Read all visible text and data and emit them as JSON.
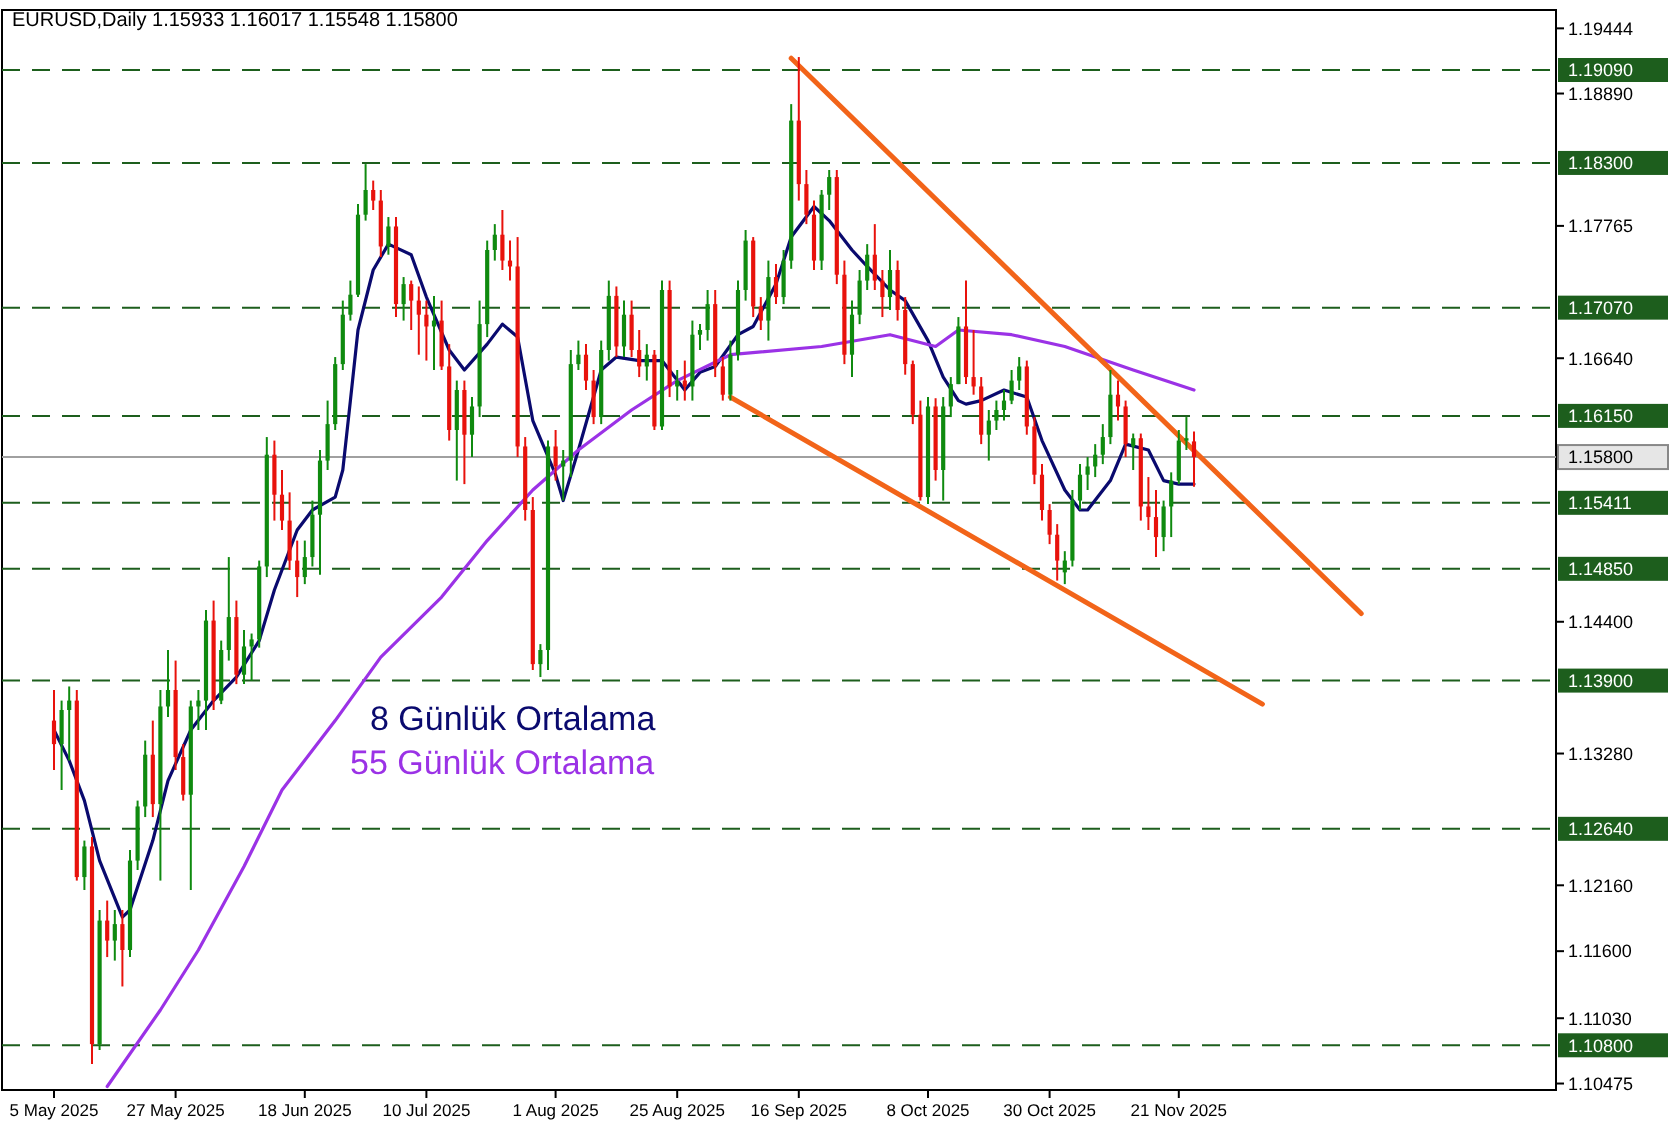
{
  "chart_data": {
    "type": "candlestick",
    "title": "EURUSD,Daily  1.15933 1.16017 1.15548 1.15800",
    "grid": false,
    "marker": "none",
    "line_style": "solid",
    "categories": [
      "5 May 2025",
      null,
      null,
      null,
      null,
      null,
      null,
      null,
      null,
      null,
      null,
      null,
      null,
      null,
      null,
      null,
      "27 May 2025",
      null,
      null,
      null,
      null,
      null,
      null,
      null,
      null,
      null,
      null,
      null,
      null,
      null,
      null,
      null,
      null,
      "18 Jun 2025",
      null,
      null,
      null,
      null,
      null,
      null,
      null,
      null,
      null,
      null,
      null,
      null,
      null,
      null,
      null,
      "10 Jul 2025",
      null,
      null,
      null,
      null,
      null,
      null,
      null,
      null,
      null,
      null,
      null,
      null,
      null,
      null,
      null,
      null,
      "1 Aug 2025",
      null,
      null,
      null,
      null,
      null,
      null,
      null,
      null,
      null,
      null,
      null,
      null,
      null,
      null,
      null,
      "25 Aug 2025",
      null,
      null,
      null,
      null,
      null,
      null,
      null,
      null,
      null,
      null,
      null,
      null,
      null,
      null,
      null,
      "16 Sep 2025",
      null,
      null,
      null,
      null,
      null,
      null,
      null,
      null,
      null,
      null,
      null,
      null,
      null,
      null,
      null,
      null,
      "8 Oct 2025",
      null,
      null,
      null,
      null,
      null,
      null,
      null,
      null,
      null,
      null,
      null,
      null,
      null,
      null,
      null,
      "30 Oct 2025",
      null,
      null,
      null,
      null,
      null,
      null,
      null,
      null,
      null,
      null,
      null,
      null,
      null,
      null,
      null,
      null,
      "21 Nov 2025",
      null,
      null,
      null,
      null,
      null,
      null,
      null,
      null,
      null,
      null,
      null,
      null,
      null,
      null,
      null,
      null,
      null,
      null,
      null,
      null,
      null,
      null,
      null,
      null,
      null,
      null,
      null,
      null,
      null,
      null,
      null,
      null,
      null,
      null,
      null,
      null,
      null,
      null,
      null,
      null,
      null,
      null,
      null,
      null,
      null,
      null,
      null
    ],
    "ohlc": [
      [
        1.1356,
        1.1382,
        1.1314,
        1.1336
      ],
      [
        1.1336,
        1.1373,
        1.1297,
        1.1365
      ],
      [
        1.1365,
        1.1385,
        1.1322,
        1.1373
      ],
      [
        1.1373,
        1.1382,
        1.122,
        1.1223
      ],
      [
        1.1223,
        1.1254,
        1.1212,
        1.1249
      ],
      [
        1.1249,
        1.1257,
        1.1064,
        1.1081
      ],
      [
        1.1081,
        1.1195,
        1.1076,
        1.1186
      ],
      [
        1.1186,
        1.1203,
        1.1155,
        1.1169
      ],
      [
        1.1169,
        1.1195,
        1.1152,
        1.1183
      ],
      [
        1.1183,
        1.1195,
        1.113,
        1.1161
      ],
      [
        1.1161,
        1.1246,
        1.1155,
        1.1237
      ],
      [
        1.1237,
        1.1288,
        1.1229,
        1.1283
      ],
      [
        1.1283,
        1.1339,
        1.1274,
        1.1327
      ],
      [
        1.1327,
        1.1356,
        1.1274,
        1.1285
      ],
      [
        1.1285,
        1.1382,
        1.122,
        1.1368
      ],
      [
        1.1368,
        1.1416,
        1.1359,
        1.1382
      ],
      [
        1.1382,
        1.1407,
        1.1314,
        1.1325
      ],
      [
        1.1325,
        1.1336,
        1.1288,
        1.1293
      ],
      [
        1.1293,
        1.1373,
        1.1212,
        1.1368
      ],
      [
        1.1368,
        1.1382,
        1.1348,
        1.1373
      ],
      [
        1.1373,
        1.145,
        1.1348,
        1.1441
      ],
      [
        1.1441,
        1.1458,
        1.1365,
        1.1373
      ],
      [
        1.1373,
        1.1424,
        1.137,
        1.1416
      ],
      [
        1.1416,
        1.1495,
        1.1407,
        1.1444
      ],
      [
        1.1444,
        1.1458,
        1.1387,
        1.1395
      ],
      [
        1.1395,
        1.1433,
        1.1387,
        1.1419
      ],
      [
        1.1419,
        1.143,
        1.139,
        1.1425
      ],
      [
        1.1425,
        1.1492,
        1.1418,
        1.1487
      ],
      [
        1.1487,
        1.1597,
        1.1478,
        1.1582
      ],
      [
        1.1582,
        1.1594,
        1.1526,
        1.1548
      ],
      [
        1.1548,
        1.1569,
        1.1518,
        1.1526
      ],
      [
        1.1526,
        1.155,
        1.1484,
        1.1492
      ],
      [
        1.1492,
        1.1509,
        1.1461,
        1.1478
      ],
      [
        1.1478,
        1.1509,
        1.1472,
        1.1495
      ],
      [
        1.1495,
        1.1543,
        1.1487,
        1.1531
      ],
      [
        1.1531,
        1.1586,
        1.148,
        1.1577
      ],
      [
        1.1577,
        1.1628,
        1.1569,
        1.1608
      ],
      [
        1.1608,
        1.1665,
        1.1603,
        1.1659
      ],
      [
        1.1659,
        1.1713,
        1.1654,
        1.1701
      ],
      [
        1.1701,
        1.173,
        1.1696,
        1.1718
      ],
      [
        1.1718,
        1.1795,
        1.1716,
        1.1786
      ],
      [
        1.1786,
        1.1829,
        1.1781,
        1.1807
      ],
      [
        1.1807,
        1.1815,
        1.179,
        1.1798
      ],
      [
        1.1798,
        1.1807,
        1.175,
        1.1759
      ],
      [
        1.1759,
        1.1784,
        1.1752,
        1.1776
      ],
      [
        1.1776,
        1.1784,
        1.1699,
        1.171
      ],
      [
        1.171,
        1.1733,
        1.1696,
        1.1727
      ],
      [
        1.1727,
        1.173,
        1.1688,
        1.1713
      ],
      [
        1.1713,
        1.1725,
        1.1667,
        1.1701
      ],
      [
        1.1701,
        1.1713,
        1.1662,
        1.1691
      ],
      [
        1.1691,
        1.1717,
        1.1654,
        1.1696
      ],
      [
        1.1696,
        1.1713,
        1.1654,
        1.1657
      ],
      [
        1.1657,
        1.1676,
        1.1594,
        1.1603
      ],
      [
        1.1603,
        1.1645,
        1.156,
        1.1637
      ],
      [
        1.1637,
        1.1645,
        1.1557,
        1.1599
      ],
      [
        1.1599,
        1.1631,
        1.158,
        1.1623
      ],
      [
        1.1623,
        1.1713,
        1.1614,
        1.1693
      ],
      [
        1.1693,
        1.1764,
        1.1682,
        1.1756
      ],
      [
        1.1756,
        1.1778,
        1.1747,
        1.1769
      ],
      [
        1.1769,
        1.179,
        1.1739,
        1.1747
      ],
      [
        1.1747,
        1.1764,
        1.173,
        1.1742
      ],
      [
        1.1742,
        1.1767,
        1.158,
        1.1589
      ],
      [
        1.1589,
        1.1597,
        1.1526,
        1.1535
      ],
      [
        1.1535,
        1.1546,
        1.1399,
        1.1404
      ],
      [
        1.1404,
        1.1421,
        1.1393,
        1.1416
      ],
      [
        1.1416,
        1.1594,
        1.1399,
        1.1589
      ],
      [
        1.1589,
        1.1603,
        1.156,
        1.1572
      ],
      [
        1.1572,
        1.1586,
        1.1543,
        1.1577
      ],
      [
        1.1577,
        1.1671,
        1.1563,
        1.1659
      ],
      [
        1.1659,
        1.1679,
        1.1654,
        1.1667
      ],
      [
        1.1667,
        1.1676,
        1.1637,
        1.1645
      ],
      [
        1.1645,
        1.1654,
        1.1608,
        1.1614
      ],
      [
        1.1614,
        1.1679,
        1.1608,
        1.1671
      ],
      [
        1.1671,
        1.173,
        1.1662,
        1.1717
      ],
      [
        1.1717,
        1.1725,
        1.1665,
        1.1674
      ],
      [
        1.1674,
        1.1713,
        1.1665,
        1.1701
      ],
      [
        1.1701,
        1.1713,
        1.1665,
        1.1671
      ],
      [
        1.1671,
        1.1688,
        1.1648,
        1.1657
      ],
      [
        1.1657,
        1.1676,
        1.1645,
        1.1667
      ],
      [
        1.1667,
        1.1671,
        1.1603,
        1.1606
      ],
      [
        1.1606,
        1.173,
        1.1603,
        1.1722
      ],
      [
        1.1722,
        1.173,
        1.1631,
        1.164
      ],
      [
        1.164,
        1.1654,
        1.1628,
        1.1645
      ],
      [
        1.1645,
        1.1662,
        1.1628,
        1.164
      ],
      [
        1.164,
        1.1696,
        1.1628,
        1.1684
      ],
      [
        1.1684,
        1.1693,
        1.1671,
        1.1688
      ],
      [
        1.1688,
        1.1722,
        1.1679,
        1.171
      ],
      [
        1.171,
        1.1722,
        1.1648,
        1.1657
      ],
      [
        1.1657,
        1.1665,
        1.1628,
        1.1633
      ],
      [
        1.1633,
        1.1679,
        1.1628,
        1.1667
      ],
      [
        1.1667,
        1.173,
        1.1662,
        1.1722
      ],
      [
        1.1722,
        1.1773,
        1.1713,
        1.1764
      ],
      [
        1.1764,
        1.1767,
        1.1699,
        1.1708
      ],
      [
        1.1708,
        1.1716,
        1.1688,
        1.1696
      ],
      [
        1.1696,
        1.1747,
        1.1679,
        1.1733
      ],
      [
        1.1733,
        1.1744,
        1.171,
        1.1716
      ],
      [
        1.1716,
        1.1756,
        1.171,
        1.1747
      ],
      [
        1.1747,
        1.188,
        1.174,
        1.1866
      ],
      [
        1.1866,
        1.192,
        1.1798,
        1.1812
      ],
      [
        1.1812,
        1.1824,
        1.1778,
        1.1786
      ],
      [
        1.1786,
        1.1798,
        1.1739,
        1.1747
      ],
      [
        1.1747,
        1.1807,
        1.1739,
        1.1803
      ],
      [
        1.1803,
        1.1824,
        1.179,
        1.1818
      ],
      [
        1.1818,
        1.1824,
        1.1727,
        1.1735
      ],
      [
        1.1735,
        1.1747,
        1.1659,
        1.1667
      ],
      [
        1.1667,
        1.1713,
        1.1648,
        1.1701
      ],
      [
        1.1701,
        1.1739,
        1.1693,
        1.173
      ],
      [
        1.173,
        1.1761,
        1.1722,
        1.1752
      ],
      [
        1.1752,
        1.1778,
        1.1722,
        1.173
      ],
      [
        1.173,
        1.1739,
        1.1699,
        1.1716
      ],
      [
        1.1716,
        1.1756,
        1.1705,
        1.1739
      ],
      [
        1.1739,
        1.1747,
        1.1696,
        1.1705
      ],
      [
        1.1705,
        1.1716,
        1.165,
        1.1659
      ],
      [
        1.1659,
        1.1662,
        1.1608,
        1.1616
      ],
      [
        1.1616,
        1.1628,
        1.1543,
        1.1546
      ],
      [
        1.1546,
        1.1631,
        1.154,
        1.1623
      ],
      [
        1.1623,
        1.163,
        1.156,
        1.1569
      ],
      [
        1.1569,
        1.1631,
        1.1543,
        1.1623
      ],
      [
        1.1623,
        1.1648,
        1.1614,
        1.1642
      ],
      [
        1.1642,
        1.1699,
        1.1642,
        1.1691
      ],
      [
        1.1691,
        1.173,
        1.1642,
        1.1648
      ],
      [
        1.1648,
        1.1688,
        1.1633,
        1.164
      ],
      [
        1.164,
        1.1648,
        1.1591,
        1.1599
      ],
      [
        1.1599,
        1.162,
        1.1577,
        1.1611
      ],
      [
        1.1611,
        1.1628,
        1.1603,
        1.162
      ],
      [
        1.162,
        1.1637,
        1.1611,
        1.1628
      ],
      [
        1.1628,
        1.1654,
        1.1625,
        1.1645
      ],
      [
        1.1645,
        1.1665,
        1.1637,
        1.1657
      ],
      [
        1.1657,
        1.1662,
        1.1599,
        1.1606
      ],
      [
        1.1606,
        1.1614,
        1.1557,
        1.1565
      ],
      [
        1.1565,
        1.1574,
        1.1526,
        1.1535
      ],
      [
        1.1535,
        1.154,
        1.1506,
        1.1514
      ],
      [
        1.1514,
        1.1523,
        1.1475,
        1.1492
      ],
      [
        1.1482,
        1.15,
        1.1472,
        1.1492
      ],
      [
        1.1492,
        1.1552,
        1.1487,
        1.1543
      ],
      [
        1.1543,
        1.1574,
        1.1535,
        1.1565
      ],
      [
        1.1565,
        1.158,
        1.1552,
        1.1572
      ],
      [
        1.1572,
        1.1591,
        1.1563,
        1.1582
      ],
      [
        1.1582,
        1.1608,
        1.1574,
        1.1597
      ],
      [
        1.1597,
        1.1654,
        1.1591,
        1.1633
      ],
      [
        1.1633,
        1.1645,
        1.1611,
        1.1623
      ],
      [
        1.1623,
        1.1628,
        1.158,
        1.1591
      ],
      [
        1.1589,
        1.16,
        1.1569,
        1.1596
      ],
      [
        1.1596,
        1.16,
        1.1526,
        1.1538
      ],
      [
        1.1538,
        1.1563,
        1.1518,
        1.1529
      ],
      [
        1.1529,
        1.1552,
        1.1495,
        1.1512
      ],
      [
        1.1512,
        1.1543,
        1.15,
        1.1538
      ],
      [
        1.1538,
        1.1567,
        1.1512,
        1.156
      ],
      [
        1.156,
        1.1603,
        1.1557,
        1.1594
      ],
      [
        1.1594,
        1.1614,
        1.1586,
        1.1596
      ],
      [
        1.15933,
        1.16017,
        1.15548,
        1.158
      ],
      null,
      null,
      null,
      null,
      null,
      null,
      null,
      null,
      null,
      null,
      null,
      null,
      null,
      null,
      null,
      null,
      null,
      null,
      null,
      null,
      null,
      null,
      null,
      null,
      null,
      null,
      null,
      null,
      null,
      null,
      null,
      null,
      null,
      null,
      null,
      null,
      null,
      null,
      null,
      null,
      null,
      null,
      null,
      null,
      null
    ],
    "series": [
      {
        "name": "8 Günlük Ortalama",
        "type": "line",
        "color": "#0a0a6e",
        "values": [
          1.1348,
          null,
          1.1322,
          null,
          1.1288,
          null,
          1.1237,
          null,
          null,
          1.1189,
          1.1195,
          null,
          null,
          1.1254,
          null,
          1.1305,
          null,
          null,
          1.1348,
          null,
          null,
          1.1373,
          null,
          null,
          1.1393,
          null,
          null,
          1.1424,
          null,
          1.1467,
          null,
          null,
          1.1518,
          null,
          1.1535,
          null,
          null,
          1.1546,
          1.1569,
          1.1628,
          1.1688,
          null,
          1.1739,
          null,
          1.1761,
          null,
          null,
          1.1752,
          null,
          1.1716,
          null,
          null,
          1.1671,
          null,
          1.1654,
          null,
          null,
          1.1676,
          null,
          1.1693,
          null,
          1.1682,
          null,
          1.1611,
          null,
          null,
          1.1565,
          1.1543,
          null,
          1.1586,
          null,
          null,
          1.1654,
          null,
          1.1665,
          null,
          null,
          1.1662,
          null,
          null,
          1.1662,
          null,
          null,
          1.1637,
          null,
          1.1652,
          null,
          1.1657,
          null,
          null,
          1.1684,
          null,
          1.1691,
          null,
          null,
          1.1727,
          null,
          1.1767,
          null,
          null,
          1.1793,
          null,
          1.1781,
          null,
          null,
          1.1756,
          null,
          1.1742,
          null,
          null,
          1.1722,
          null,
          1.1713,
          null,
          null,
          1.1679,
          null,
          1.1648,
          null,
          1.1628,
          1.1625,
          null,
          1.1628,
          null,
          null,
          1.1637,
          null,
          null,
          1.1631,
          null,
          1.1594,
          null,
          null,
          1.1552,
          null,
          1.1535,
          1.1535,
          null,
          null,
          1.156,
          null,
          1.1591,
          null,
          null,
          1.1586,
          null,
          1.156,
          null,
          1.1557,
          null,
          1.1557,
          null,
          null,
          null,
          null,
          null,
          null,
          null,
          null,
          null,
          null,
          null,
          null,
          null,
          null,
          null,
          null,
          null,
          null,
          null,
          null,
          null,
          null,
          null,
          null,
          null,
          null,
          null,
          null,
          null,
          null,
          null,
          null,
          null,
          null,
          null,
          null,
          null,
          null,
          null,
          null,
          null,
          null,
          null,
          null,
          null
        ]
      },
      {
        "name": "55 Günlük Ortalama",
        "type": "line",
        "color": "#9b32e6",
        "values": [
          null,
          null,
          null,
          null,
          null,
          null,
          null,
          1.1045,
          null,
          null,
          null,
          null,
          null,
          null,
          1.111,
          null,
          null,
          null,
          null,
          1.1161,
          null,
          null,
          null,
          null,
          null,
          1.1232,
          null,
          null,
          null,
          null,
          1.1297,
          null,
          null,
          null,
          null,
          null,
          null,
          1.1356,
          null,
          null,
          null,
          null,
          null,
          1.141,
          null,
          null,
          null,
          null,
          null,
          null,
          null,
          1.1461,
          null,
          null,
          null,
          null,
          null,
          1.1509,
          null,
          null,
          null,
          null,
          null,
          1.1552,
          null,
          null,
          null,
          null,
          null,
          1.1586,
          null,
          null,
          null,
          null,
          null,
          null,
          1.162,
          null,
          null,
          null,
          null,
          null,
          1.1645,
          null,
          null,
          null,
          null,
          null,
          null,
          1.1667,
          null,
          null,
          null,
          null,
          null,
          null,
          null,
          null,
          null,
          null,
          null,
          1.1674,
          null,
          null,
          null,
          null,
          null,
          null,
          null,
          null,
          1.1684,
          null,
          null,
          null,
          null,
          null,
          1.1674,
          null,
          null,
          1.1688,
          null,
          null,
          null,
          null,
          null,
          null,
          1.1684,
          null,
          null,
          null,
          null,
          null,
          null,
          1.1674,
          null,
          null,
          null,
          null,
          null,
          null,
          null,
          null,
          1.1654,
          null,
          null,
          null,
          null,
          null,
          null,
          null,
          1.1637,
          null,
          null,
          null,
          null,
          null,
          null,
          null,
          null,
          null,
          null,
          null,
          null,
          null,
          null,
          null,
          null,
          null,
          null,
          null,
          null,
          null,
          null,
          null,
          null,
          null,
          null,
          null,
          null,
          null,
          null,
          null,
          null,
          null,
          null,
          null,
          null,
          null,
          null,
          null,
          null,
          null,
          null,
          null,
          null,
          null
        ]
      },
      {
        "type": "line",
        "color": "#f26419",
        "values": [
          null,
          null,
          null,
          null,
          null,
          null,
          null,
          null,
          null,
          null,
          null,
          null,
          null,
          null,
          null,
          null,
          null,
          null,
          null,
          null,
          null,
          null,
          null,
          null,
          null,
          null,
          null,
          null,
          null,
          null,
          null,
          null,
          null,
          null,
          null,
          null,
          null,
          null,
          null,
          null,
          null,
          null,
          null,
          null,
          null,
          null,
          null,
          null,
          null,
          null,
          null,
          null,
          null,
          null,
          null,
          null,
          null,
          null,
          null,
          null,
          null,
          null,
          null,
          null,
          null,
          null,
          null,
          null,
          null,
          null,
          null,
          null,
          null,
          null,
          null,
          null,
          null,
          null,
          null,
          null,
          null,
          null,
          null,
          null,
          null,
          null,
          null,
          null,
          null,
          null,
          null,
          null,
          null,
          null,
          null,
          null,
          null,
          1.1919,
          null,
          null,
          null,
          null,
          null,
          null,
          null,
          null,
          null,
          null,
          null,
          null,
          null,
          null,
          null,
          null,
          null,
          null,
          null,
          null,
          null,
          null,
          null,
          null,
          null,
          null,
          null,
          null,
          null,
          null,
          null,
          null,
          null,
          null,
          null,
          null,
          null,
          null,
          null,
          null,
          null,
          null,
          null,
          null,
          null,
          null,
          null,
          null,
          null,
          null,
          null,
          null,
          null,
          null,
          null,
          null,
          null,
          null,
          null,
          null,
          null,
          null,
          null,
          null,
          null,
          null,
          null,
          null,
          null,
          null,
          null,
          null,
          null,
          null,
          1.1447,
          null,
          null,
          null,
          null,
          null,
          null,
          null,
          null,
          null,
          null,
          null,
          null,
          null,
          null,
          null,
          null,
          null,
          null,
          null,
          null,
          null,
          null,
          null
        ]
      },
      {
        "type": "line",
        "color": "#f26419",
        "values": [
          null,
          null,
          null,
          null,
          null,
          null,
          null,
          null,
          null,
          null,
          null,
          null,
          null,
          null,
          null,
          null,
          null,
          null,
          null,
          null,
          null,
          null,
          null,
          null,
          null,
          null,
          null,
          null,
          null,
          null,
          null,
          null,
          null,
          null,
          null,
          null,
          null,
          null,
          null,
          null,
          null,
          null,
          null,
          null,
          null,
          null,
          null,
          null,
          null,
          null,
          null,
          null,
          null,
          null,
          null,
          null,
          null,
          null,
          null,
          null,
          null,
          null,
          null,
          null,
          null,
          null,
          null,
          null,
          null,
          null,
          null,
          null,
          null,
          null,
          null,
          null,
          null,
          null,
          null,
          null,
          null,
          null,
          null,
          null,
          null,
          null,
          null,
          null,
          null,
          1.1631,
          null,
          null,
          null,
          null,
          null,
          null,
          null,
          null,
          null,
          null,
          null,
          null,
          null,
          null,
          null,
          null,
          null,
          null,
          null,
          null,
          null,
          null,
          null,
          null,
          null,
          null,
          null,
          null,
          null,
          null,
          null,
          null,
          null,
          null,
          null,
          null,
          null,
          null,
          null,
          null,
          null,
          null,
          null,
          null,
          null,
          null,
          null,
          null,
          null,
          null,
          null,
          null,
          null,
          null,
          null,
          null,
          null,
          null,
          null,
          null,
          null,
          null,
          null,
          null,
          null,
          null,
          null,
          null,
          null,
          1.137,
          null,
          null,
          null,
          null,
          null,
          null,
          null,
          null,
          null,
          null,
          null,
          null,
          null,
          null,
          null,
          null,
          null,
          null,
          null,
          null,
          null,
          null,
          null,
          null,
          null,
          null,
          null,
          null,
          null,
          null,
          null,
          null,
          null,
          null,
          null,
          null
        ]
      }
    ],
    "ref_lines": [
      {
        "axis": "y",
        "value": 1.1909,
        "label": "1.19090",
        "color": "#1d5e1d",
        "line_style": "dashed"
      },
      {
        "axis": "y",
        "value": 1.183,
        "label": "1.18300",
        "color": "#1d5e1d",
        "line_style": "dashed"
      },
      {
        "axis": "y",
        "value": 1.1707,
        "label": "1.17070",
        "color": "#1d5e1d",
        "line_style": "dashed"
      },
      {
        "axis": "y",
        "value": 1.1615,
        "label": "1.16150",
        "color": "#1d5e1d",
        "line_style": "dashed"
      },
      {
        "axis": "y",
        "value": 1.158,
        "label": "1.15800",
        "color": "#a0a0a0",
        "line_style": "solid"
      },
      {
        "axis": "y",
        "value": 1.15411,
        "label": "1.15411",
        "color": "#1d5e1d",
        "line_style": "dashed"
      },
      {
        "axis": "y",
        "value": 1.1485,
        "label": "1.14850",
        "color": "#1d5e1d",
        "line_style": "dashed"
      },
      {
        "axis": "y",
        "value": 1.139,
        "label": "1.13900",
        "color": "#1d5e1d",
        "line_style": "dashed"
      },
      {
        "axis": "y",
        "value": 1.1264,
        "label": "1.12640",
        "color": "#1d5e1d",
        "line_style": "dashed"
      },
      {
        "axis": "y",
        "value": 1.108,
        "label": "1.10800",
        "color": "#1d5e1d",
        "line_style": "dashed"
      }
    ],
    "ylim": [
      1.1042,
      1.196
    ],
    "yticks": [
      1.19444,
      {
        "value": 1.1889,
        "label": "1.18890"
      },
      1.17765,
      {
        "value": 1.1664,
        "label": "1.16640"
      },
      {
        "value": 1.144,
        "label": "1.14400"
      },
      {
        "value": 1.1328,
        "label": "1.13280"
      },
      {
        "value": 1.1216,
        "label": "1.12160"
      },
      {
        "value": 1.116,
        "label": "1.11600"
      },
      {
        "value": 1.1103,
        "label": "1.11030"
      },
      1.10475
    ]
  }
}
